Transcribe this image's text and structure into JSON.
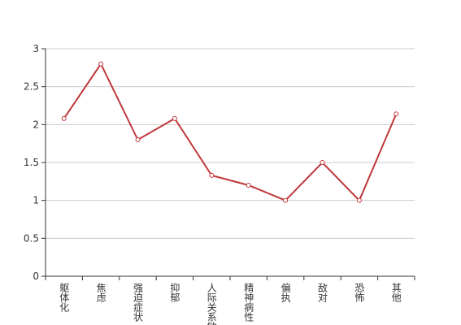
{
  "chart_data": {
    "type": "line",
    "categories": [
      "躯体化",
      "焦虑",
      "强迫症状",
      "抑郁",
      "人际关系敏感",
      "精神病性",
      "偏执",
      "敌对",
      "恐怖",
      "其他"
    ],
    "series": [
      {
        "color": "#c0373a",
        "values": [
          2.08,
          2.8,
          1.8,
          2.08,
          1.33,
          1.2,
          1.0,
          1.5,
          1.0,
          2.14
        ]
      }
    ],
    "ylim": [
      0,
      3
    ],
    "yticks": [
      0,
      0.5,
      1,
      1.5,
      2,
      2.5,
      3
    ],
    "grid": true
  }
}
